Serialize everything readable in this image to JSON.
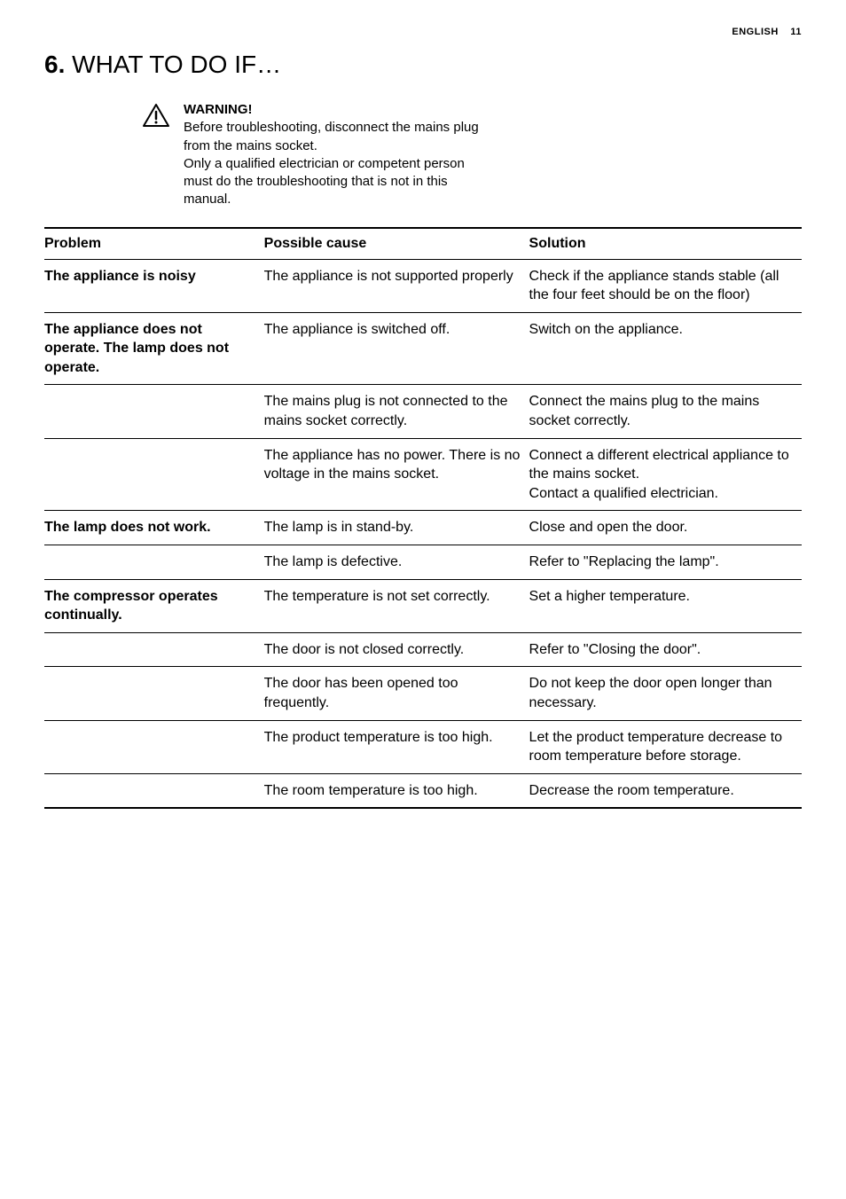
{
  "header": {
    "language": "ENGLISH",
    "page_number": "11"
  },
  "section": {
    "number": "6.",
    "title": "WHAT TO DO IF…"
  },
  "warning": {
    "label": "WARNING!",
    "text": "Before troubleshooting, disconnect the mains plug from the mains socket.\nOnly a qualified electrician or competent person must do the troubleshooting that is not in this manual."
  },
  "table": {
    "headers": {
      "problem": "Problem",
      "cause": "Possible cause",
      "solution": "Solution"
    },
    "rows": [
      {
        "problem": "The appliance is noisy",
        "cause": "The appliance is not supported properly",
        "solution": "Check if the appliance stands stable (all the four feet should be on the floor)"
      },
      {
        "problem": "The appliance does not operate. The lamp does not operate.",
        "cause": "The appliance is switched off.",
        "solution": "Switch on the appliance."
      },
      {
        "problem": "",
        "cause": "The mains plug is not connected to the mains socket correctly.",
        "solution": "Connect the mains plug to the mains socket correctly."
      },
      {
        "problem": "",
        "cause": "The appliance has no power. There is no voltage in the mains socket.",
        "solution": "Connect a different electrical appliance to the mains socket.\nContact a qualified electrician."
      },
      {
        "problem": "The lamp does not work.",
        "cause": "The lamp is in stand-by.",
        "solution": "Close and open the door."
      },
      {
        "problem": "",
        "cause": "The lamp is defective.",
        "solution": "Refer to \"Replacing the lamp\"."
      },
      {
        "problem": "The compressor operates continually.",
        "cause": "The temperature is not set correctly.",
        "solution": "Set a higher temperature."
      },
      {
        "problem": "",
        "cause": "The door is not closed correctly.",
        "solution": "Refer to \"Closing the door\"."
      },
      {
        "problem": "",
        "cause": "The door has been opened too frequently.",
        "solution": "Do not keep the door open longer than necessary."
      },
      {
        "problem": "",
        "cause": "The product temperature is too high.",
        "solution": "Let the product temperature decrease to room temperature before storage."
      },
      {
        "problem": "",
        "cause": "The room temperature is too high.",
        "solution": "Decrease the room temperature."
      }
    ]
  },
  "styling": {
    "font_family": "Arial, Helvetica, sans-serif",
    "body_font_size": 16,
    "title_font_size": 28,
    "header_font_size": 11,
    "text_color": "#000000",
    "background_color": "#ffffff",
    "border_color": "#000000",
    "thick_border_width": 2,
    "thin_border_width": 1
  }
}
